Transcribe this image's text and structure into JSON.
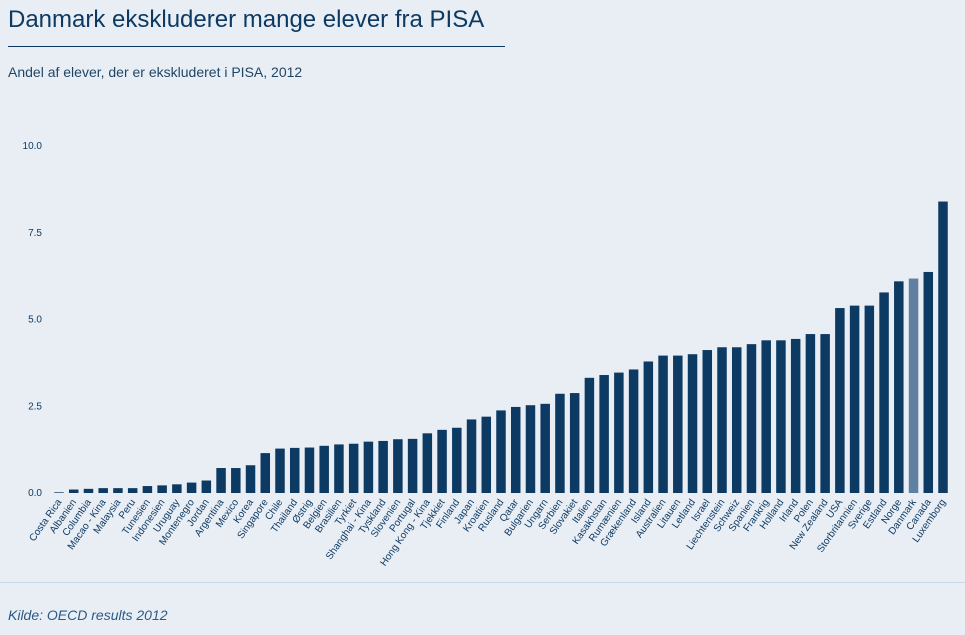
{
  "header": {
    "title": "Danmark ekskluderer mange elever fra PISA",
    "subtitle": "Andel af elever, der er ekskluderet i PISA, 2012"
  },
  "footer": {
    "source": "Kilde: OECD results 2012"
  },
  "colors": {
    "bar": "#0d3a63",
    "highlight": "#5f80a0",
    "axis_text": "#0d3a63",
    "background": "#e9eef5"
  },
  "chart_data": {
    "type": "bar",
    "title": "Danmark ekskluderer mange elever fra PISA",
    "subtitle": "Andel af elever, der er ekskluderet i PISA, 2012",
    "xlabel": "",
    "ylabel": "",
    "ylim": [
      0,
      10
    ],
    "yticks": [
      0,
      2.5,
      5,
      7.5,
      10
    ],
    "ytick_labels": [
      "0.0",
      "2.5",
      "5.0",
      "7.5",
      "10.0"
    ],
    "grid": false,
    "legend": "none",
    "highlight_category": "Danmark",
    "categories": [
      "Costa Rica",
      "Albanien",
      "Columbia",
      "Macao - Kina",
      "Malaysia",
      "Peru",
      "Tunesien",
      "Indonesien",
      "Uruguay",
      "Montenegro",
      "Jordan",
      "Argentina",
      "Mexico",
      "Korea",
      "Singapore",
      "Chile",
      "Thailand",
      "Østrig",
      "Belgien",
      "Brasilien",
      "Tyrkiet",
      "Shanghai - Kina",
      "Tyskland",
      "Slovenien",
      "Portugal",
      "Hong Kong - Kina",
      "Tjekkiet",
      "Finland",
      "Japan",
      "Kroatien",
      "Rusland",
      "Qatar",
      "Bulgarien",
      "Ungarn",
      "Serbien",
      "Slovakiet",
      "Italien",
      "Kasakhstan",
      "Rumænien",
      "Grækenland",
      "Island",
      "Australien",
      "Litauen",
      "Letland",
      "Israel",
      "Liechtenstein",
      "Schweiz",
      "Spanien",
      "Frankrig",
      "Holland",
      "Irland",
      "Polen",
      "New Zealand",
      "USA",
      "Storbritannien",
      "Sverige",
      "Estland",
      "Norge",
      "Danmark",
      "Canada",
      "Luxemborg"
    ],
    "values": [
      0.02,
      0.1,
      0.12,
      0.14,
      0.14,
      0.14,
      0.2,
      0.22,
      0.25,
      0.3,
      0.36,
      0.72,
      0.72,
      0.8,
      1.15,
      1.28,
      1.3,
      1.31,
      1.36,
      1.4,
      1.42,
      1.48,
      1.5,
      1.55,
      1.56,
      1.72,
      1.82,
      1.88,
      2.12,
      2.2,
      2.38,
      2.48,
      2.53,
      2.57,
      2.86,
      2.88,
      3.32,
      3.4,
      3.47,
      3.56,
      3.79,
      3.96,
      3.96,
      4.0,
      4.12,
      4.2,
      4.2,
      4.29,
      4.4,
      4.4,
      4.44,
      4.58,
      4.58,
      5.33,
      5.4,
      5.4,
      5.78,
      6.1,
      6.18,
      6.37,
      8.4
    ]
  }
}
